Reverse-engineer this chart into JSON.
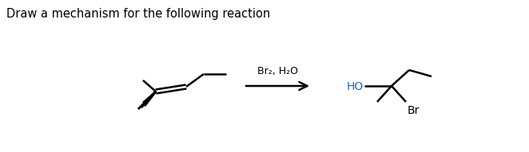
{
  "title": "Draw a mechanism for the following reaction",
  "title_color": "#000000",
  "title_fontsize": 10.5,
  "reagent_text": "Br₂, H₂O",
  "reagent_color": "#000000",
  "ho_color": "#1a6bb5",
  "br_color": "#000000",
  "background_color": "#ffffff"
}
